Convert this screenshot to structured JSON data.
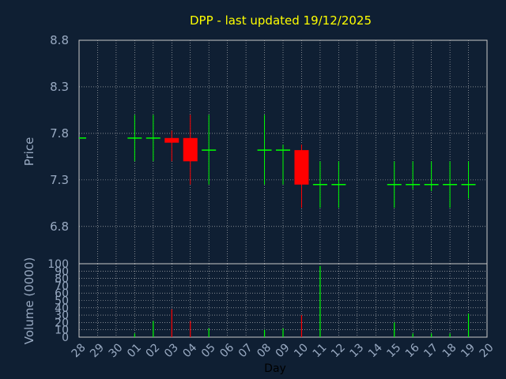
{
  "chart_data": {
    "title": "DPP - last updated 19/12/2025",
    "xlabel": "Day",
    "x_ticks": [
      "28",
      "29",
      "30",
      "01",
      "02",
      "03",
      "04",
      "05",
      "06",
      "07",
      "08",
      "09",
      "10",
      "11",
      "12",
      "13",
      "14",
      "15",
      "16",
      "17",
      "18",
      "19",
      "20"
    ],
    "price": {
      "type": "candlestick",
      "ylabel": "Price",
      "ylim": [
        6.4,
        8.8
      ],
      "y_ticks": [
        "8.8",
        "8.3",
        "7.8",
        "7.3",
        "6.8"
      ],
      "candles": [
        {
          "x": "28",
          "open": 7.75,
          "close": 7.75,
          "high": 7.75,
          "low": 7.75
        },
        {
          "x": "01",
          "open": 7.75,
          "close": 7.75,
          "high": 8.0,
          "low": 7.5
        },
        {
          "x": "02",
          "open": 7.75,
          "close": 7.75,
          "high": 8.0,
          "low": 7.5
        },
        {
          "x": "03",
          "open": 7.75,
          "close": 7.7,
          "high": 7.83,
          "low": 7.5
        },
        {
          "x": "04",
          "open": 7.75,
          "close": 7.5,
          "high": 8.0,
          "low": 7.25
        },
        {
          "x": "05",
          "open": 7.62,
          "close": 7.62,
          "high": 8.0,
          "low": 7.25
        },
        {
          "x": "08",
          "open": 7.62,
          "close": 7.62,
          "high": 8.0,
          "low": 7.25
        },
        {
          "x": "09",
          "open": 7.62,
          "close": 7.62,
          "high": 7.68,
          "low": 7.25
        },
        {
          "x": "10",
          "open": 7.62,
          "close": 7.25,
          "high": 7.68,
          "low": 7.0
        },
        {
          "x": "11",
          "open": 7.25,
          "close": 7.25,
          "high": 7.5,
          "low": 7.0
        },
        {
          "x": "12",
          "open": 7.25,
          "close": 7.25,
          "high": 7.5,
          "low": 7.0
        },
        {
          "x": "15",
          "open": 7.25,
          "close": 7.25,
          "high": 7.5,
          "low": 7.0
        },
        {
          "x": "16",
          "open": 7.25,
          "close": 7.25,
          "high": 7.5,
          "low": 7.2
        },
        {
          "x": "17",
          "open": 7.25,
          "close": 7.25,
          "high": 7.5,
          "low": 7.18
        },
        {
          "x": "18",
          "open": 7.25,
          "close": 7.25,
          "high": 7.5,
          "low": 7.0
        },
        {
          "x": "19",
          "open": 7.25,
          "close": 7.25,
          "high": 7.5,
          "low": 7.1
        }
      ]
    },
    "volume": {
      "type": "bar",
      "ylabel": "Volume (0000)",
      "ylim": [
        0,
        100
      ],
      "y_ticks": [
        "100",
        "90",
        "80",
        "70",
        "60",
        "50",
        "40",
        "30",
        "20",
        "10",
        "0"
      ],
      "bars": [
        {
          "x": "01",
          "value": 5,
          "color": "#00ff00"
        },
        {
          "x": "02",
          "value": 22,
          "color": "#00ff00"
        },
        {
          "x": "03",
          "value": 38,
          "color": "#ff0000"
        },
        {
          "x": "04",
          "value": 22,
          "color": "#ff0000"
        },
        {
          "x": "05",
          "value": 12,
          "color": "#00ff00"
        },
        {
          "x": "08",
          "value": 10,
          "color": "#00ff00"
        },
        {
          "x": "09",
          "value": 12,
          "color": "#00ff00"
        },
        {
          "x": "10",
          "value": 30,
          "color": "#ff0000"
        },
        {
          "x": "11",
          "value": 97,
          "color": "#00ff00"
        },
        {
          "x": "15",
          "value": 20,
          "color": "#00ff00"
        },
        {
          "x": "16",
          "value": 5,
          "color": "#00ff00"
        },
        {
          "x": "17",
          "value": 5,
          "color": "#00ff00"
        },
        {
          "x": "18",
          "value": 5,
          "color": "#00ff00"
        },
        {
          "x": "19",
          "value": 32,
          "color": "#00ff00"
        }
      ]
    },
    "colors": {
      "background": "#0f1f33",
      "up": "#00ff00",
      "down": "#ff0000",
      "grid": "#c8c8c8",
      "axis_text": "#99aac2",
      "title": "#ffff00"
    }
  }
}
